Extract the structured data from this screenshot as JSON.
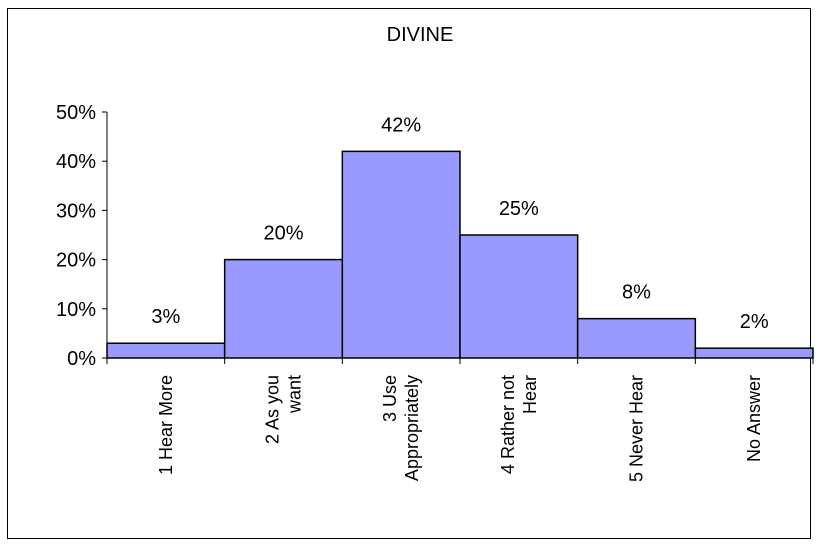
{
  "chart_data": {
    "type": "bar",
    "title": "DIVINE",
    "xlabel": "",
    "ylabel": "",
    "categories": [
      [
        "1 Hear More"
      ],
      [
        "2 As you",
        "want"
      ],
      [
        "3 Use",
        "Appropriately"
      ],
      [
        "4 Rather not",
        "Hear"
      ],
      [
        "5 Never Hear"
      ],
      [
        "No Answer"
      ]
    ],
    "values": [
      3,
      20,
      42,
      25,
      8,
      2
    ],
    "data_labels": [
      "3%",
      "20%",
      "42%",
      "25%",
      "8%",
      "2%"
    ],
    "ylim": [
      0,
      50
    ],
    "yticks": [
      "0%",
      "10%",
      "20%",
      "30%",
      "40%",
      "50%"
    ],
    "bar_color": "#9999ff",
    "bar_edge_color": "#000000",
    "grid": false,
    "legend": "none"
  }
}
